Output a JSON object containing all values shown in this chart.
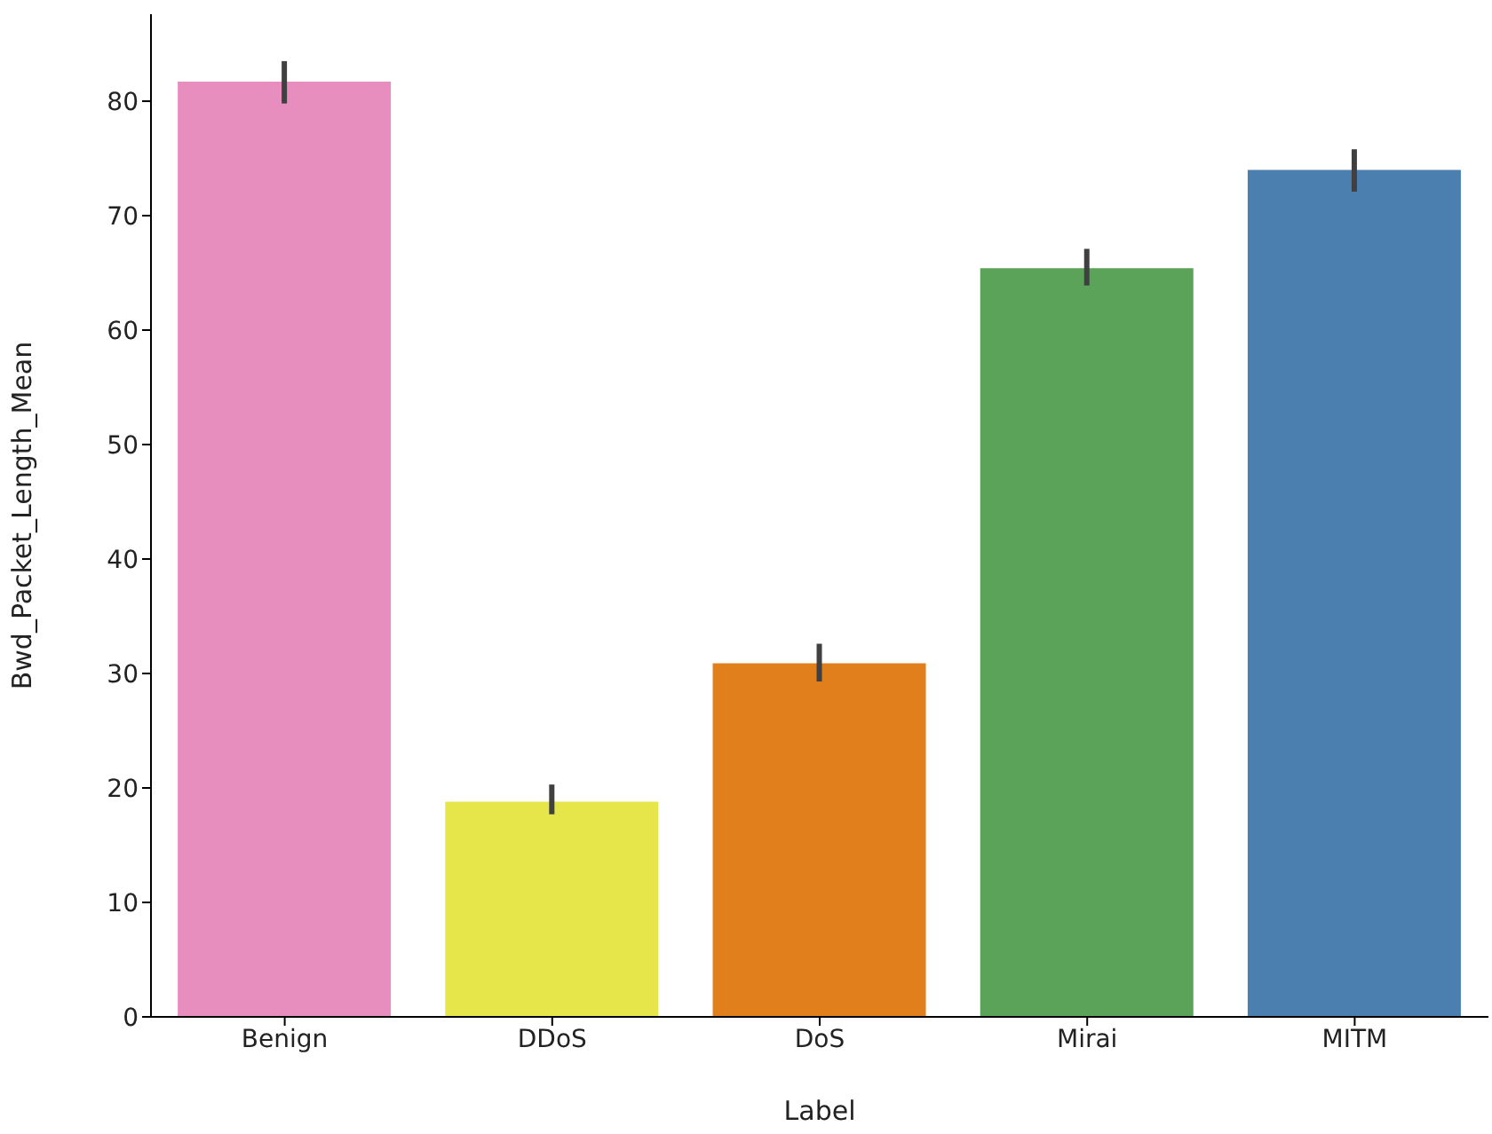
{
  "chart_data": {
    "type": "bar",
    "xlabel": "Label",
    "ylabel": "Bwd_Packet_Length_Mean",
    "categories": [
      "Benign",
      "DDoS",
      "DoS",
      "Mirai",
      "MITM"
    ],
    "values": [
      81.7,
      18.8,
      30.9,
      65.4,
      74.0
    ],
    "colors": [
      "#e78ebf",
      "#e6e64b",
      "#e17f1d",
      "#5ba358",
      "#4a7fb0"
    ],
    "errors": [
      [
        79.8,
        83.5
      ],
      [
        17.7,
        20.3
      ],
      [
        29.3,
        32.6
      ],
      [
        63.9,
        67.1
      ],
      [
        72.1,
        75.8
      ]
    ],
    "ylim": [
      0,
      87.6
    ],
    "yticks": [
      0,
      10,
      20,
      30,
      40,
      50,
      60,
      70,
      80
    ],
    "grid": false,
    "legend": false
  }
}
